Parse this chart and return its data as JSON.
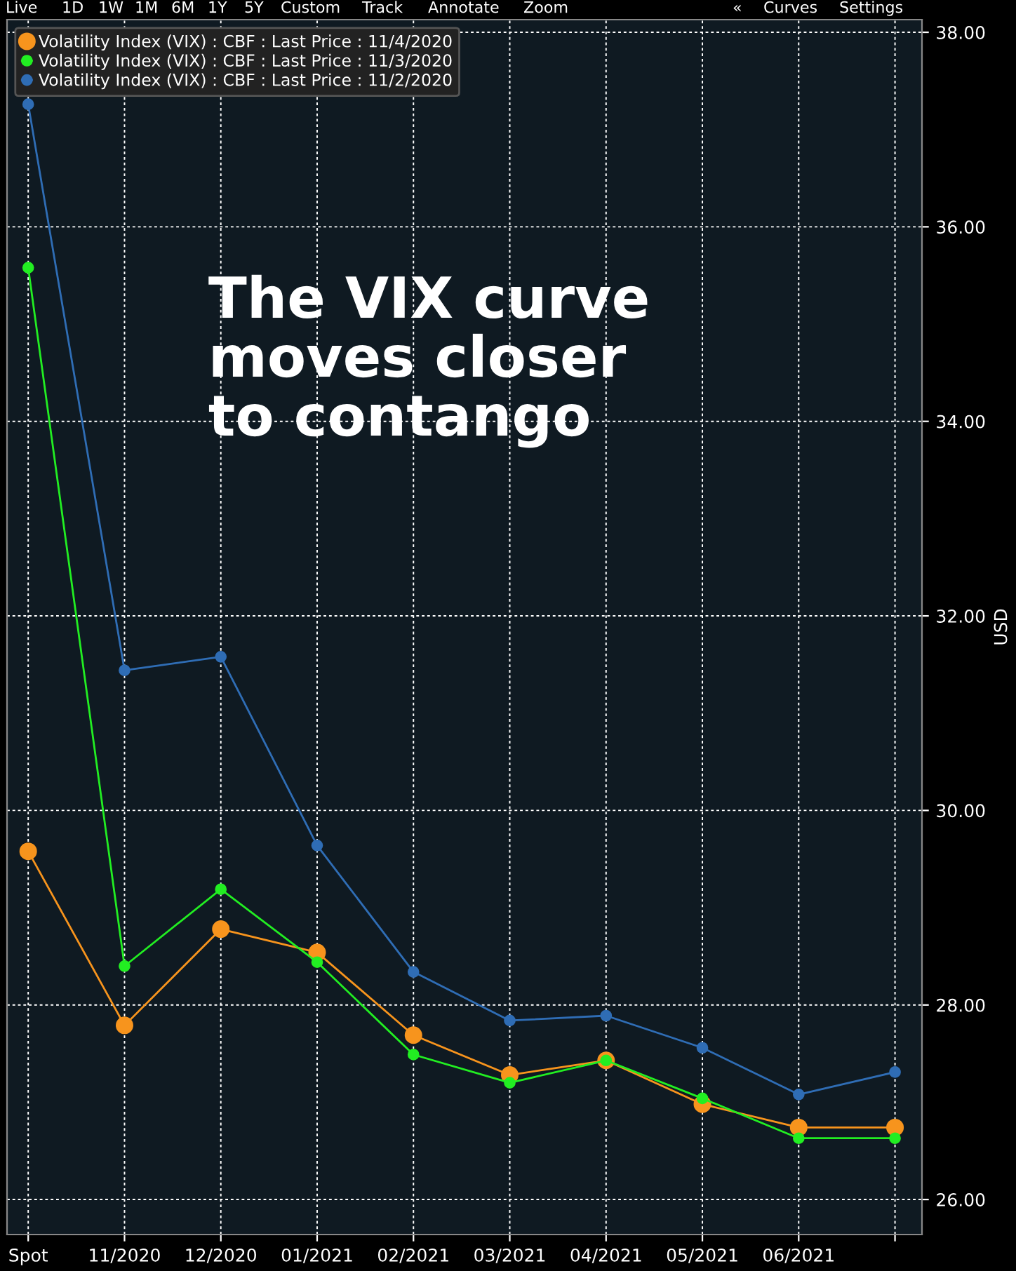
{
  "chart_data": {
    "type": "line",
    "ylabel": "USD",
    "categories": [
      "Spot",
      "11/2020",
      "12/2020",
      "01/2021",
      "02/2021",
      "03/2021",
      "04/2021",
      "05/2021",
      "06/2021",
      null
    ],
    "series": [
      {
        "name": "Volatility Index (VIX) : CBF : Last Price : 11/4/2020",
        "color": "#f7941d",
        "values": [
          29.58,
          27.79,
          28.78,
          28.54,
          27.69,
          27.28,
          27.43,
          26.98,
          26.74,
          26.74
        ]
      },
      {
        "name": "Volatility Index (VIX) : CBF : Last Price : 11/3/2020",
        "color": "#22ee22",
        "values": [
          35.58,
          28.4,
          29.19,
          28.44,
          27.49,
          27.2,
          27.43,
          27.04,
          26.63,
          26.63
        ]
      },
      {
        "name": "Volatility Index (VIX) : CBF : Last Price : 11/2/2020",
        "color": "#2f6db5",
        "values": [
          37.26,
          31.44,
          31.58,
          29.64,
          28.34,
          27.84,
          27.89,
          27.56,
          27.08,
          27.31
        ]
      }
    ],
    "ylim": [
      25.64,
      38.13
    ],
    "yticks": [
      {
        "value": 26,
        "label": "26.00"
      },
      {
        "value": 28,
        "label": "28.00"
      },
      {
        "value": 30,
        "label": "30.00"
      },
      {
        "value": 32,
        "label": "32.00"
      },
      {
        "value": 34,
        "label": "34.00"
      },
      {
        "value": 36,
        "label": "36.00"
      },
      {
        "value": 38,
        "label": "38.00"
      }
    ],
    "grid": true,
    "legend": "top left",
    "marker": "circle",
    "line_style": "solid",
    "annotations": [
      "The VIX curve\nmoves closer\nto contango",
      "Live",
      "1D",
      "1W",
      "1M",
      "6M",
      "1Y",
      "5Y",
      "Custom",
      "Track",
      "Annotate",
      "Zoom",
      "«",
      "Curves",
      "Settings"
    ]
  }
}
